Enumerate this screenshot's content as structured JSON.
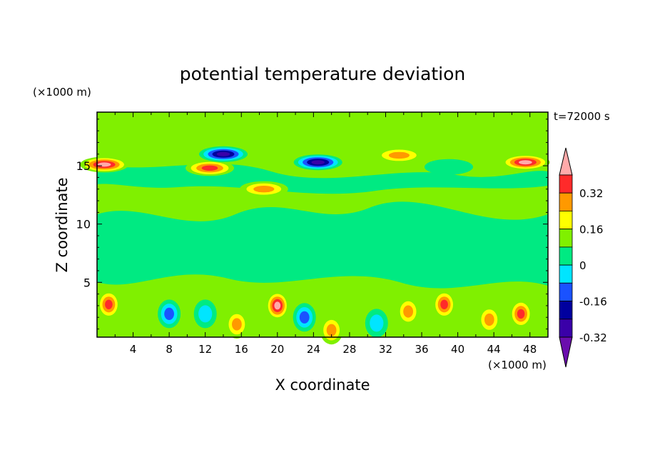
{
  "chart_data": {
    "type": "heatmap",
    "title": "potential temperature deviation",
    "xlabel": "X coordinate",
    "ylabel": "Z coordinate",
    "x_unit": "(×1000 m)",
    "y_unit": "(×1000 m)",
    "time_label": "t=72000 s",
    "xlim": [
      0,
      50
    ],
    "ylim": [
      0.3,
      19.6
    ],
    "xticks": [
      "4",
      "8",
      "12",
      "16",
      "20",
      "24",
      "28",
      "32",
      "36",
      "40",
      "44",
      "48"
    ],
    "yticks": [
      "5",
      "10",
      "15"
    ],
    "colorbar": {
      "levels": [
        -0.4,
        -0.32,
        -0.24,
        -0.16,
        -0.08,
        0,
        0.08,
        0.16,
        0.24,
        0.32,
        0.4
      ],
      "colors": [
        "#6a0dad",
        "#3a00a8",
        "#00009e",
        "#1a52ff",
        "#00e5ff",
        "#00ea82",
        "#80f000",
        "#ffff00",
        "#ff9900",
        "#ff2a2a",
        "#ffaaaa"
      ],
      "tick_labels": [
        "0.32",
        "0.16",
        "0",
        "-0.16",
        "-0.32"
      ]
    },
    "features": [
      {
        "x": 0.8,
        "z": 15.1,
        "value": 0.4
      },
      {
        "x": 47.5,
        "z": 15.3,
        "value": 0.4
      },
      {
        "x": 12.5,
        "z": 14.8,
        "value": 0.3
      },
      {
        "x": 18.5,
        "z": 13.0,
        "value": 0.22
      },
      {
        "x": 33.5,
        "z": 15.9,
        "value": 0.2
      },
      {
        "x": 24.5,
        "z": 15.3,
        "value": -0.4
      },
      {
        "x": 14.0,
        "z": 16.0,
        "value": -0.35
      },
      {
        "x": 39.0,
        "z": 14.9,
        "value": -0.08
      },
      {
        "x": 1.3,
        "z": 3.1,
        "value": 0.3
      },
      {
        "x": 8.0,
        "z": 2.3,
        "value": -0.2
      },
      {
        "x": 12.0,
        "z": 2.3,
        "value": -0.16
      },
      {
        "x": 15.5,
        "z": 1.4,
        "value": 0.2
      },
      {
        "x": 20.0,
        "z": 3.0,
        "value": 0.35
      },
      {
        "x": 23.0,
        "z": 2.0,
        "value": -0.22
      },
      {
        "x": 26.0,
        "z": 0.9,
        "value": 0.2
      },
      {
        "x": 31.0,
        "z": 1.5,
        "value": -0.1
      },
      {
        "x": 34.5,
        "z": 2.5,
        "value": 0.18
      },
      {
        "x": 38.5,
        "z": 3.1,
        "value": 0.25
      },
      {
        "x": 43.5,
        "z": 1.8,
        "value": 0.2
      },
      {
        "x": 47.0,
        "z": 2.3,
        "value": 0.3
      }
    ]
  }
}
